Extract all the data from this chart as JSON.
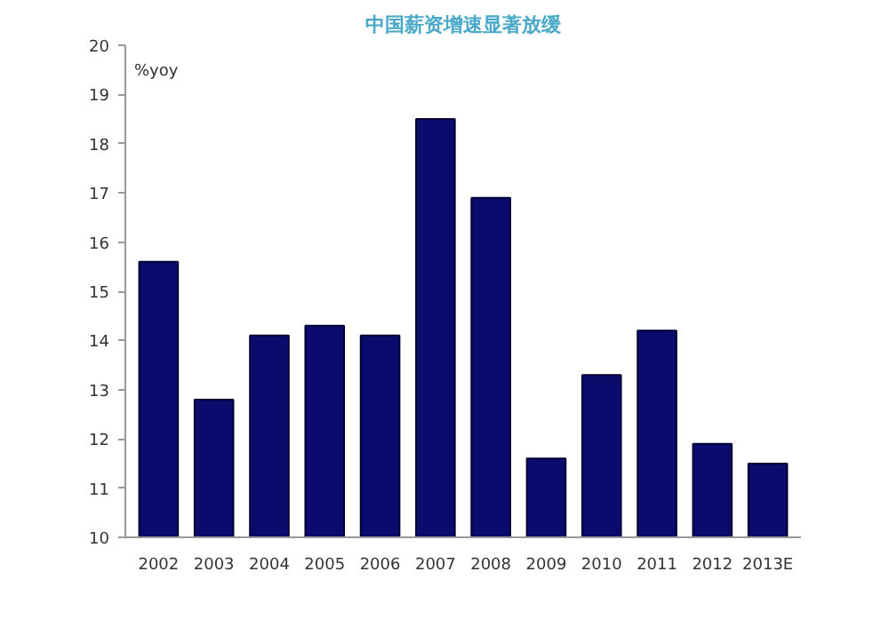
{
  "chart_data": {
    "type": "bar",
    "title": "中国薪资增速显著放缓",
    "ylabel": "%yoy",
    "categories": [
      "2002",
      "2003",
      "2004",
      "2005",
      "2006",
      "2007",
      "2008",
      "2009",
      "2010",
      "2011",
      "2012",
      "2013E"
    ],
    "values": [
      15.6,
      12.8,
      14.1,
      14.3,
      14.1,
      18.5,
      16.9,
      11.6,
      13.3,
      14.2,
      11.9,
      11.5
    ],
    "color": "#0b0b6e",
    "ylim": [
      10,
      20
    ],
    "yticks": [
      10,
      11,
      12,
      13,
      14,
      15,
      16,
      17,
      18,
      19,
      20
    ],
    "grid": false
  }
}
